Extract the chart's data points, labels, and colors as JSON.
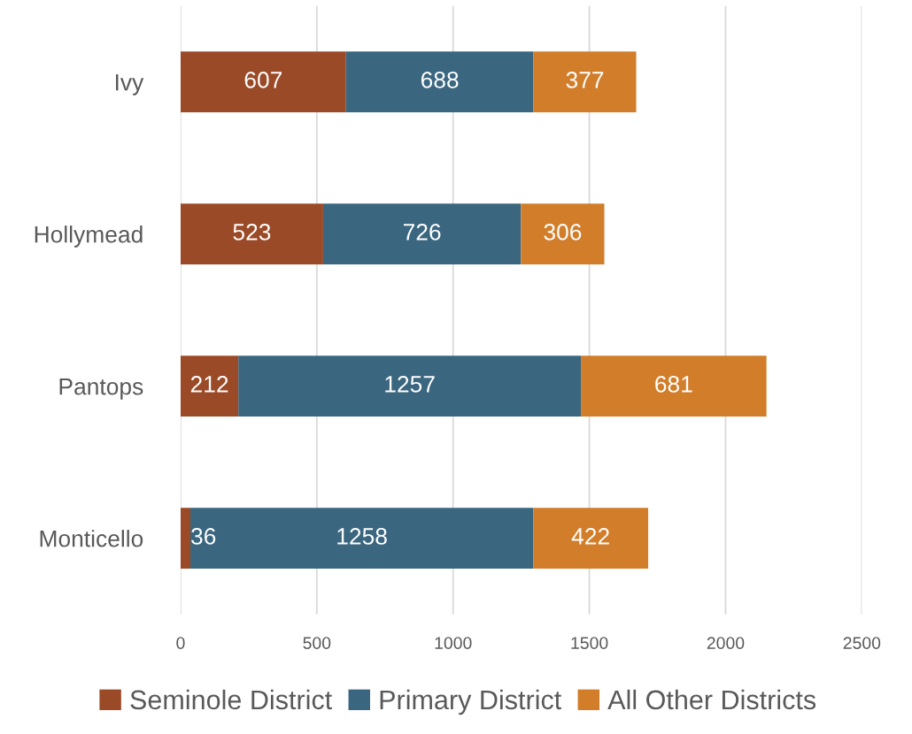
{
  "chart_data": {
    "type": "bar",
    "orientation": "horizontal",
    "stacked": true,
    "categories": [
      "Ivy",
      "Hollymead",
      "Pantops",
      "Monticello"
    ],
    "series": [
      {
        "name": "Seminole District",
        "color": "#9b4a27",
        "values": [
          607,
          523,
          212,
          36
        ]
      },
      {
        "name": "Primary District",
        "color": "#3a667f",
        "values": [
          688,
          726,
          1257,
          1258
        ]
      },
      {
        "name": "All Other Districts",
        "color": "#d27d2a",
        "values": [
          377,
          306,
          681,
          422
        ]
      }
    ],
    "xlim": [
      0,
      2500
    ],
    "xticks": [
      0,
      500,
      1000,
      1500,
      2000,
      2500
    ],
    "grid": "x",
    "legend": "bottom",
    "data_labels": true
  }
}
